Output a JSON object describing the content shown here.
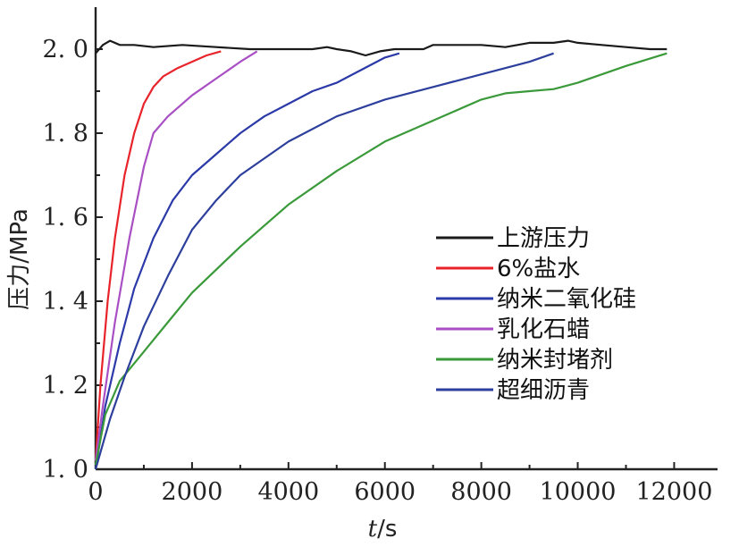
{
  "chart_data": {
    "type": "line",
    "xlabel_italic": "t",
    "xlabel_unit": "/s",
    "ylabel": "压力/MPa",
    "xlim": [
      0,
      12900
    ],
    "ylim": [
      1.0,
      2.1
    ],
    "x_ticks": [
      0,
      2000,
      4000,
      6000,
      8000,
      10000,
      12000
    ],
    "x_tick_labels": [
      "0",
      "2000",
      "4000",
      "6000",
      "8000",
      "10000",
      "12000"
    ],
    "y_ticks": [
      1.0,
      1.2,
      1.4,
      1.6,
      1.8,
      2.0
    ],
    "y_tick_labels": [
      "1. 0",
      "1. 2",
      "1. 4",
      "1. 6",
      "1. 8",
      "2. 0"
    ],
    "legend_position": "center-right",
    "series": [
      {
        "name": "上游压力",
        "color": "#1a1a1a",
        "x": [
          0,
          150,
          300,
          500,
          800,
          1200,
          1800,
          2500,
          3200,
          4000,
          4500,
          4800,
          5000,
          5300,
          5600,
          5900,
          6200,
          6800,
          7000,
          7500,
          8000,
          8500,
          9000,
          9500,
          9800,
          10000,
          10500,
          11000,
          11500,
          11850
        ],
        "y": [
          1.99,
          2.01,
          2.02,
          2.01,
          2.01,
          2.005,
          2.01,
          2.005,
          2.0,
          2.0,
          2.0,
          2.005,
          2.0,
          1.995,
          1.985,
          1.995,
          2.0,
          2.0,
          2.01,
          2.01,
          2.01,
          2.005,
          2.015,
          2.015,
          2.02,
          2.015,
          2.01,
          2.005,
          2.0,
          2.0
        ]
      },
      {
        "name": "6%盐水",
        "color": "#e8232a",
        "x": [
          0,
          100,
          250,
          400,
          600,
          800,
          1000,
          1200,
          1400,
          1700,
          2000,
          2300,
          2600
        ],
        "y": [
          1.02,
          1.2,
          1.4,
          1.55,
          1.7,
          1.8,
          1.87,
          1.91,
          1.935,
          1.955,
          1.97,
          1.985,
          1.995
        ]
      },
      {
        "name": "纳米二氧化硅",
        "color": "#2b3aa8",
        "x": [
          0,
          200,
          500,
          800,
          1200,
          1600,
          2000,
          2500,
          3000,
          3500,
          4000,
          4500,
          5000,
          5500,
          6000,
          6300
        ],
        "y": [
          1.0,
          1.15,
          1.3,
          1.43,
          1.55,
          1.64,
          1.7,
          1.75,
          1.8,
          1.84,
          1.87,
          1.9,
          1.92,
          1.95,
          1.98,
          1.99
        ]
      },
      {
        "name": "乳化石蜡",
        "color": "#a94fc4",
        "x": [
          0,
          150,
          400,
          700,
          1000,
          1200,
          1500,
          2000,
          2500,
          3000,
          3350
        ],
        "y": [
          1.02,
          1.15,
          1.35,
          1.55,
          1.72,
          1.8,
          1.84,
          1.89,
          1.93,
          1.97,
          1.995
        ]
      },
      {
        "name": "纳米封堵剂",
        "color": "#3a9a3a",
        "x": [
          0,
          200,
          500,
          1000,
          1500,
          2000,
          3000,
          4000,
          5000,
          6000,
          7000,
          8000,
          8500,
          9000,
          9500,
          10000,
          11000,
          11850
        ],
        "y": [
          1.01,
          1.13,
          1.21,
          1.28,
          1.35,
          1.42,
          1.53,
          1.63,
          1.71,
          1.78,
          1.83,
          1.88,
          1.895,
          1.9,
          1.905,
          1.92,
          1.96,
          1.99
        ]
      },
      {
        "name": "超细沥青",
        "color": "#2d3f9c",
        "x": [
          0,
          300,
          600,
          1000,
          1500,
          2000,
          2500,
          3000,
          4000,
          5000,
          6000,
          7000,
          8000,
          9000,
          9500
        ],
        "y": [
          1.0,
          1.12,
          1.22,
          1.34,
          1.46,
          1.57,
          1.64,
          1.7,
          1.78,
          1.84,
          1.88,
          1.91,
          1.94,
          1.97,
          1.99
        ]
      }
    ]
  }
}
